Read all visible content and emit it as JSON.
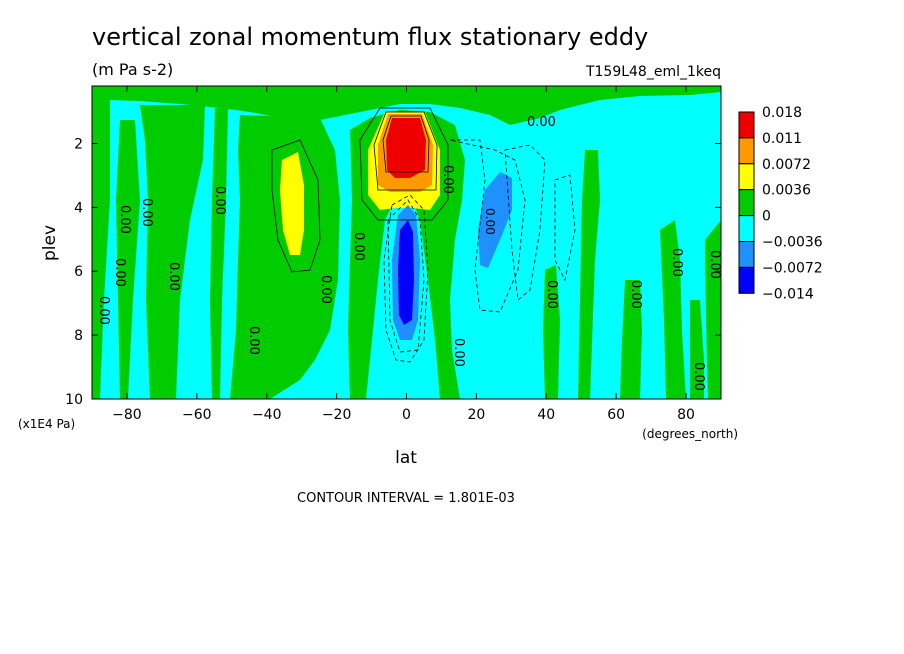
{
  "chart_data": {
    "type": "heatmap",
    "title": "vertical zonal momentum flux stationary eddy",
    "units": "(m Pa s-2)",
    "dataset": "T159L48_eml_1keq",
    "xlabel": "lat",
    "xunits": "(degrees_north)",
    "ylabel": "plev",
    "yunits": "(x1E4 Pa)",
    "xlim": [
      -90,
      90
    ],
    "ylim": [
      0.2,
      10
    ],
    "y_inverted": true,
    "xticks": [
      -80,
      -60,
      -40,
      -20,
      0,
      20,
      40,
      60,
      80
    ],
    "xtick_labels": [
      "-80",
      "-60",
      "-40",
      "-20",
      "0",
      "20",
      "40",
      "60",
      "80"
    ],
    "yticks": [
      2,
      4,
      6,
      8,
      10
    ],
    "ytick_labels": [
      "2",
      "4",
      "6",
      "8",
      "10"
    ],
    "contour_interval_text": "CONTOUR INTERVAL = 1.801E-03",
    "contour_label": "0.00",
    "colorbar": {
      "levels": [
        "0.018",
        "0.011",
        "0.0072",
        "0.0036",
        "0",
        "-0.0036",
        "-0.0072",
        "-0.014"
      ],
      "colors": [
        "#ee0000",
        "#ff9900",
        "#ffff00",
        "#00cc00",
        "#00ffff",
        "#1e90ff",
        "#0000ff"
      ]
    },
    "background_color": "#00ffff",
    "features": [
      {
        "kind": "positive_band",
        "lat": [
          -90,
          -85
        ],
        "plev": [
          1.0,
          10
        ],
        "level": "0"
      },
      {
        "kind": "positive_band",
        "lat": [
          -80,
          -72
        ],
        "plev": [
          2.0,
          10
        ],
        "level": "0"
      },
      {
        "kind": "positive_band",
        "lat": [
          -72,
          -60
        ],
        "plev": [
          1.5,
          10
        ],
        "level": "0"
      },
      {
        "kind": "positive_maximum",
        "lat": -33,
        "plev": 4.0,
        "level": "0.0036"
      },
      {
        "kind": "positive_maximum",
        "lat": 0,
        "plev": 1.8,
        "level": "0.018"
      },
      {
        "kind": "negative_minimum",
        "lat": 0,
        "plev": 6.0,
        "level": "-0.014"
      },
      {
        "kind": "negative_minimum",
        "lat": 25,
        "plev": 4.5,
        "level": "-0.0072"
      }
    ]
  }
}
